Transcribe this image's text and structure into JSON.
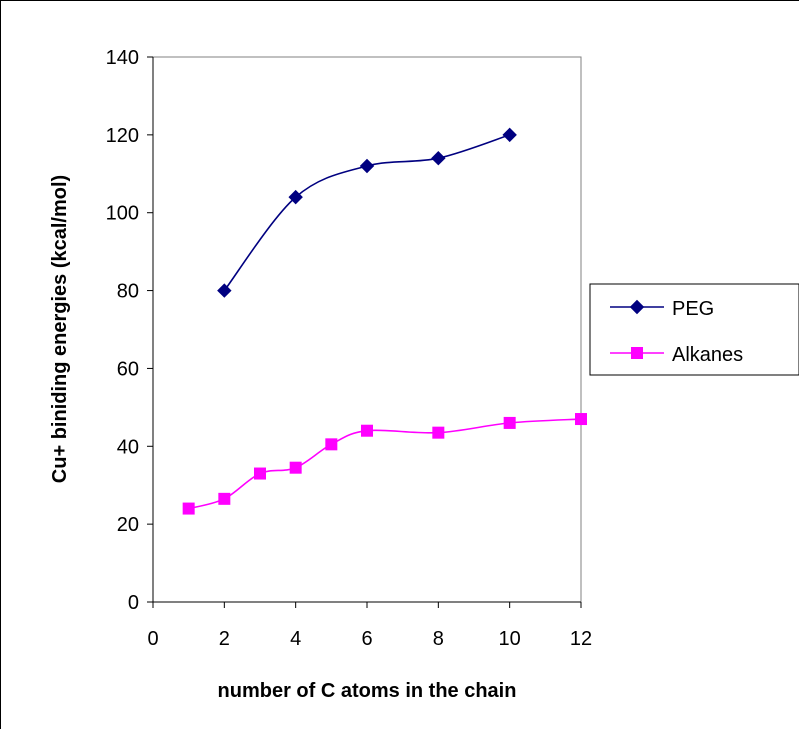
{
  "chart_data": {
    "type": "line",
    "xlabel": "number of C atoms in the chain",
    "ylabel": "Cu+ biniding energies (kcal/mol)",
    "xlim": [
      0,
      12
    ],
    "ylim": [
      0,
      140
    ],
    "xticks": [
      0,
      2,
      4,
      6,
      8,
      10,
      12
    ],
    "yticks": [
      0,
      20,
      40,
      60,
      80,
      100,
      120,
      140
    ],
    "grid": false,
    "legend_position": "right",
    "series": [
      {
        "name": "PEG",
        "color": "#000080",
        "marker": "diamond",
        "smooth": true,
        "x": [
          2,
          4,
          6,
          8,
          10
        ],
        "values": [
          80,
          104,
          112,
          114,
          120
        ]
      },
      {
        "name": "Alkanes",
        "color": "#ff00ff",
        "marker": "square",
        "smooth": true,
        "x": [
          1,
          2,
          3,
          4,
          5,
          6,
          8,
          10,
          12
        ],
        "values": [
          24,
          26.5,
          33,
          34.5,
          40.5,
          44,
          43.5,
          46,
          47
        ]
      }
    ]
  }
}
